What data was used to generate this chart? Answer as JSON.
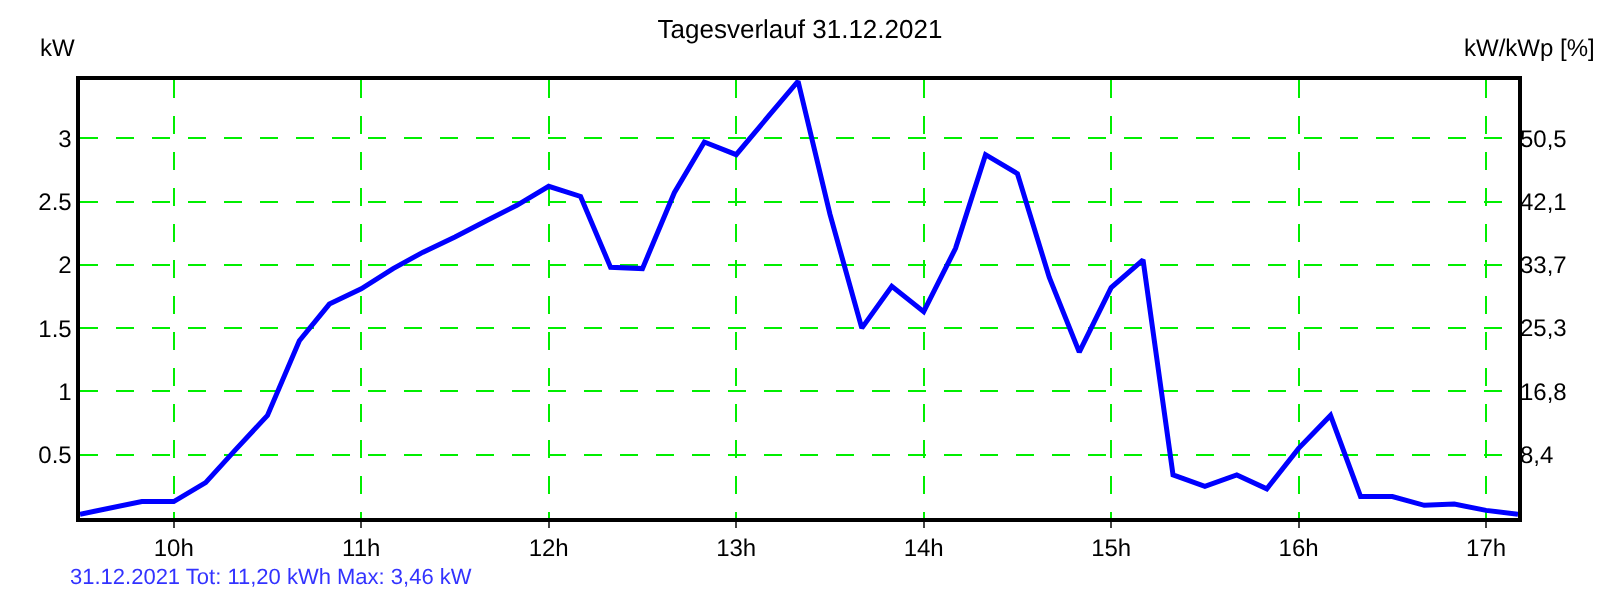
{
  "chart_data": {
    "type": "line",
    "title": "Tagesverlauf 31.12.2021",
    "ylabel": "kW",
    "y2label": "kW/kWp [%]",
    "annotations": [
      "31.12.2021 Tot: 11,20 kWh Max: 3,46 kW"
    ],
    "x": [
      9.5,
      9.83,
      10.0,
      10.17,
      10.33,
      10.5,
      10.67,
      10.83,
      11.0,
      11.17,
      11.33,
      11.5,
      11.67,
      11.83,
      12.0,
      12.17,
      12.33,
      12.5,
      12.67,
      12.83,
      13.0,
      13.17,
      13.33,
      13.5,
      13.67,
      13.83,
      14.0,
      14.17,
      14.33,
      14.5,
      14.67,
      14.83,
      15.0,
      15.17,
      15.33,
      15.5,
      15.67,
      15.83,
      16.0,
      16.17,
      16.33,
      16.5,
      16.67,
      16.83,
      17.0,
      17.17
    ],
    "series": [
      {
        "color": "#0000ff",
        "values": [
          0.03,
          0.13,
          0.13,
          0.28,
          0.54,
          0.81,
          1.4,
          1.69,
          1.81,
          1.97,
          2.1,
          2.22,
          2.35,
          2.47,
          2.62,
          2.54,
          1.98,
          1.97,
          2.57,
          2.97,
          2.87,
          3.17,
          3.45,
          2.4,
          1.5,
          1.83,
          1.63,
          2.13,
          2.87,
          2.72,
          1.9,
          1.31,
          1.82,
          2.04,
          0.34,
          0.25,
          0.34,
          0.23,
          0.55,
          0.81,
          0.17,
          0.17,
          0.1,
          0.11,
          0.06,
          0.03
        ]
      }
    ],
    "xlim": [
      9.5,
      17.17
    ],
    "xticks": [
      {
        "value": 10,
        "label": "10h"
      },
      {
        "value": 11,
        "label": "11h"
      },
      {
        "value": 12,
        "label": "12h"
      },
      {
        "value": 13,
        "label": "13h"
      },
      {
        "value": 14,
        "label": "14h"
      },
      {
        "value": 15,
        "label": "15h"
      },
      {
        "value": 16,
        "label": "16h"
      },
      {
        "value": 17,
        "label": "17h"
      }
    ],
    "ylim": [
      0,
      3.46
    ],
    "yticks": [
      0.5,
      1,
      1.5,
      2,
      2.5,
      3
    ],
    "y2lim": [
      0,
      58.3
    ],
    "y2ticks": [
      {
        "value": 8.4,
        "label": "8,4"
      },
      {
        "value": 16.8,
        "label": "16,8"
      },
      {
        "value": 25.3,
        "label": "25,3"
      },
      {
        "value": 33.7,
        "label": "33,7"
      },
      {
        "value": 42.1,
        "label": "42,1"
      },
      {
        "value": 50.5,
        "label": "50,5"
      }
    ],
    "grid": true,
    "line_style": "solid",
    "marker": "none"
  }
}
